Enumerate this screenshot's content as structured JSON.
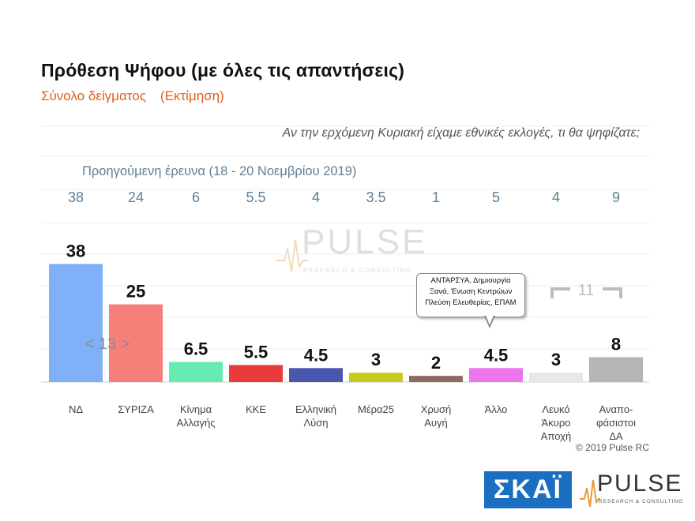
{
  "header": {
    "title": "Πρόθεση Ψήφου (με όλες τις απαντήσεις)",
    "subtitle_left": "Σύνολο δείγματος",
    "subtitle_right": "(Εκτίμηση)",
    "question": "Αν την ερχόμενη Κυριακή είχαμε εθνικές εκλογές, τι θα ψηφίζατε;",
    "previous_survey_label": "Προηγούμενη έρευνα  (18 - 20 Νοεμβρίου  2019)"
  },
  "chart_data": {
    "type": "bar",
    "title": "Πρόθεση Ψήφου (με όλες τις απαντήσεις)",
    "categories": [
      [
        "ΝΔ"
      ],
      [
        "ΣΥΡΙΖΑ"
      ],
      [
        "Κίνημα",
        "Αλλαγής"
      ],
      [
        "ΚΚΕ"
      ],
      [
        "Ελληνική",
        "Λύση"
      ],
      [
        "Μέρα25"
      ],
      [
        "Χρυσή",
        "Αυγή"
      ],
      [
        "Άλλο"
      ],
      [
        "Λευκό",
        "Άκυρο",
        "Αποχή"
      ],
      [
        "Αναπο-",
        "φάσιστοι",
        "ΔΑ"
      ]
    ],
    "series": [
      {
        "values": [
          38,
          25,
          6.5,
          5.5,
          4.5,
          3,
          2,
          4.5,
          3,
          8
        ]
      }
    ],
    "labels": [
      "38",
      "25",
      "6.5",
      "5.5",
      "4.5",
      "3",
      "2",
      "4.5",
      "3",
      "8"
    ],
    "previous_values": [
      "38",
      "24",
      "6",
      "5.5",
      "4",
      "3.5",
      "1",
      "5",
      "4",
      "9"
    ],
    "colors": [
      "#7fb0f8",
      "#f77f7a",
      "#66ecb3",
      "#ea3a3c",
      "#4a55ad",
      "#c9c81c",
      "#8d6b62",
      "#ec74ec",
      "#e8e8e8",
      "#b5b5b5"
    ],
    "ylim": [
      0,
      40
    ],
    "grid": true,
    "group_annotations": [
      {
        "text": "< 13 >",
        "spans": [
          "Κίνημα Αλλαγής",
          "ΚΚΕ"
        ]
      },
      {
        "text": "11",
        "spans": [
          "Λευκό Άκυρο Αποχή",
          "Αναποφάσιστοι ΔΑ"
        ]
      }
    ],
    "callout": [
      "ΑΝΤΑΡΣΥΑ, Δημιουργία",
      "Ξανά, Ένωση Κεντρώων",
      "Πλεύση Ελευθερίας, ΕΠΑΜ"
    ]
  },
  "watermark": {
    "brand": "PULSE",
    "tagline": "RESEARCH & CONSULTING"
  },
  "footer": {
    "copyright": "© 2019 Pulse RC",
    "skai_logo": "ΣΚΑΪ",
    "pulse_brand": "PULSE",
    "pulse_tagline": "RESEARCH & CONSULTING"
  }
}
